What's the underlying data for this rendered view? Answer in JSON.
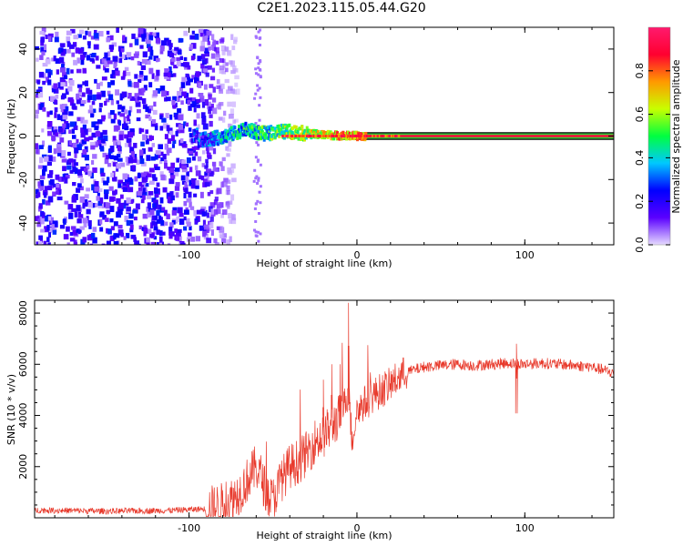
{
  "title": "C2E1.2023.115.05.44.G20",
  "colors": {
    "snr_line": "#e8392b",
    "spectrogram_low": "#5a00ff",
    "spectrogram_high": "#ff1a3a",
    "colorbar_stops": [
      "#e6dbff",
      "#5a00ff",
      "#0000ff",
      "#00c8ff",
      "#00ff40",
      "#c8ff00",
      "#ff9900",
      "#ff0030",
      "#ff1a6e"
    ]
  },
  "chart_data": [
    {
      "type": "heatmap",
      "name": "spectrogram",
      "xlabel": "Height of straight line (km)",
      "ylabel": "Frequency (Hz)",
      "xlim": [
        -192,
        153
      ],
      "ylim": [
        -50,
        50
      ],
      "x_ticks": [
        -100,
        0,
        100
      ],
      "y_ticks": [
        -40,
        -20,
        0,
        20,
        40
      ],
      "colorbar": {
        "label": "Normalized spectral amplitude",
        "range": [
          0.0,
          1.0
        ],
        "ticks": [
          0.0,
          0.2,
          0.4,
          0.6,
          0.8
        ]
      },
      "description_points": {
        "noise_region_x": [
          -192,
          -95
        ],
        "transition_x": [
          -95,
          -20
        ],
        "steady_line_freq_hz": 0,
        "steady_line_amplitude": 0.9,
        "ridge": [
          {
            "x": -95,
            "y": -2
          },
          {
            "x": -85,
            "y": -1
          },
          {
            "x": -75,
            "y": 1
          },
          {
            "x": -68,
            "y": 3
          },
          {
            "x": -62,
            "y": 2
          },
          {
            "x": -55,
            "y": 1
          },
          {
            "x": -48,
            "y": 2
          },
          {
            "x": -40,
            "y": 2
          },
          {
            "x": -30,
            "y": 1
          },
          {
            "x": -20,
            "y": 0.5
          },
          {
            "x": 0,
            "y": 0
          },
          {
            "x": 153,
            "y": 0
          }
        ]
      }
    },
    {
      "type": "line",
      "name": "snr",
      "xlabel": "Height of straight line (km)",
      "ylabel": "SNR (10 * v/v)",
      "xlim": [
        -192,
        153
      ],
      "ylim": [
        0,
        8500
      ],
      "x_ticks": [
        -100,
        0,
        100
      ],
      "y_ticks": [
        2000,
        4000,
        6000,
        8000
      ],
      "series": [
        {
          "x": [
            -192,
            -170,
            -150,
            -130,
            -110,
            -100,
            -90,
            -80,
            -75,
            -70,
            -65,
            -60,
            -57,
            -55,
            -52,
            -50,
            -45,
            -40,
            -35,
            -30,
            -25,
            -20,
            -15,
            -10,
            -7,
            -5,
            -3,
            0,
            5,
            10,
            15,
            20,
            25,
            30,
            40,
            50,
            60,
            70,
            80,
            90,
            100,
            110,
            120,
            130,
            140,
            153
          ],
          "y": [
            300,
            280,
            260,
            270,
            290,
            320,
            350,
            500,
            700,
            1000,
            1500,
            2000,
            1600,
            1200,
            800,
            700,
            1500,
            2000,
            2200,
            2500,
            3000,
            3200,
            3600,
            4000,
            4500,
            5000,
            3000,
            4200,
            4500,
            4800,
            5000,
            5200,
            5500,
            5700,
            5900,
            5950,
            6000,
            5950,
            6000,
            6050,
            6000,
            6050,
            6000,
            5950,
            5900,
            5650
          ]
        }
      ],
      "peaks": [
        {
          "x": -5,
          "y": 8400
        },
        {
          "x": -15,
          "y": 6000
        },
        {
          "x": -20,
          "y": 5400
        },
        {
          "x": -10,
          "y": 6000
        },
        {
          "x": 95,
          "y": 6800
        }
      ]
    }
  ]
}
